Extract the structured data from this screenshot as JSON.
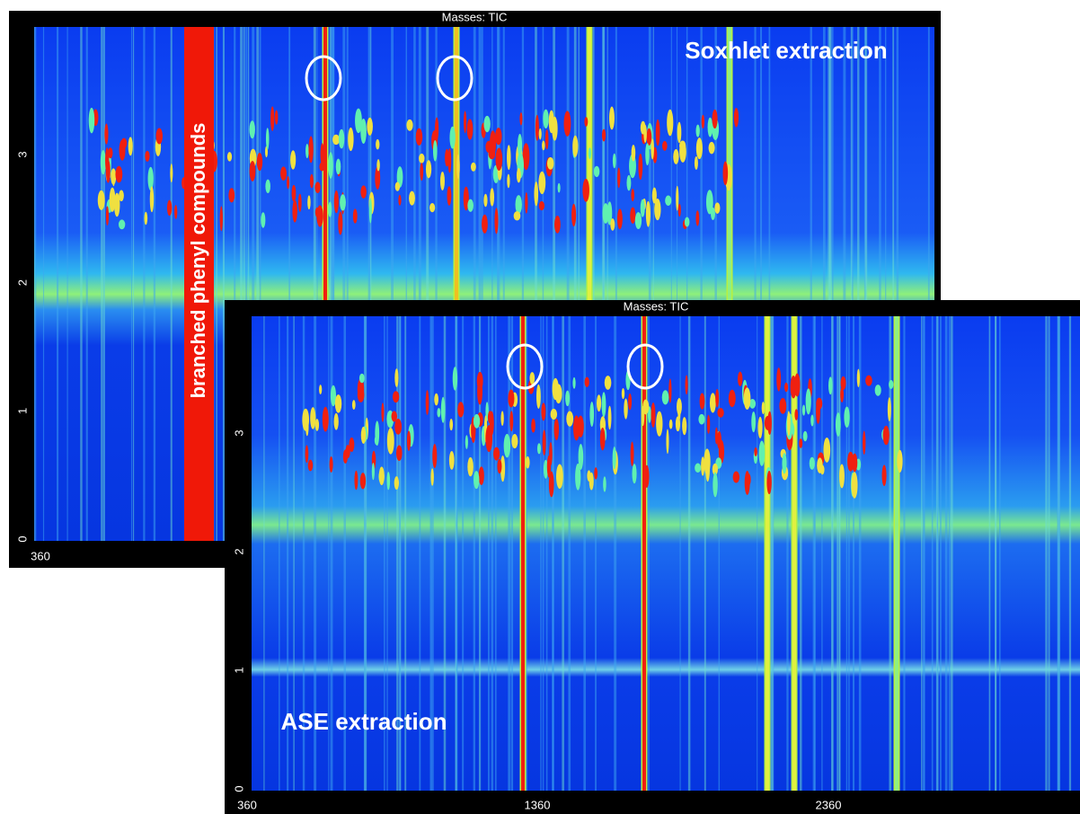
{
  "panels": [
    {
      "header": "Masses: TIC",
      "title": "Soxhlet extraction",
      "annotation": "branched phenyl compounds",
      "y_ticks": [
        0,
        1,
        2,
        3
      ],
      "x_ticks": [
        360
      ]
    },
    {
      "header": "Masses: TIC",
      "title": "ASE extraction",
      "y_ticks": [
        0,
        1,
        2,
        3
      ],
      "x_ticks": [
        360,
        1360,
        2360
      ]
    }
  ]
}
